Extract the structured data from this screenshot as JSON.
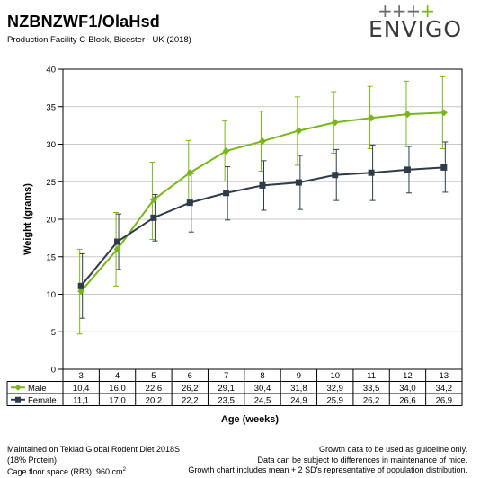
{
  "header": {
    "title": "NZBNZWF1/OlaHsd",
    "subtitle": "Production Facility C-Block, Bicester - UK (2018)",
    "logo_plus": "+++",
    "logo_plus_green": "+",
    "logo_text": "ENVIGO"
  },
  "chart_data": {
    "type": "line",
    "title": "",
    "xlabel": "Age (weeks)",
    "ylabel": "Weight (grams)",
    "ylim": [
      0,
      40
    ],
    "yticks": [
      0,
      5,
      10,
      15,
      20,
      25,
      30,
      35,
      40
    ],
    "grid": true,
    "legend_placement": "table-below",
    "categories": [
      "3",
      "4",
      "5",
      "6",
      "7",
      "8",
      "9",
      "10",
      "11",
      "12",
      "13"
    ],
    "series": [
      {
        "name": "Male",
        "color": "#7ab51d",
        "marker": "diamond",
        "values": [
          10.4,
          16.0,
          22.6,
          26.2,
          29.1,
          30.4,
          31.8,
          32.9,
          33.5,
          34.0,
          34.2
        ],
        "labels": [
          "10,4",
          "16,0",
          "22,6",
          "26,2",
          "29,1",
          "30,4",
          "31,8",
          "32,9",
          "33,5",
          "34,0",
          "34,2"
        ],
        "err_low": [
          4.7,
          11.1,
          17.3,
          21.9,
          25.1,
          26.4,
          27.2,
          28.8,
          29.4,
          29.7,
          29.4
        ],
        "err_high": [
          16.0,
          20.9,
          27.6,
          30.5,
          33.1,
          34.4,
          36.3,
          37.0,
          37.7,
          38.4,
          39.0
        ]
      },
      {
        "name": "Female",
        "color": "#2f3b48",
        "marker": "square",
        "values": [
          11.1,
          17.0,
          20.2,
          22.2,
          23.5,
          24.5,
          24.9,
          25.9,
          26.2,
          26.6,
          26.9
        ],
        "labels": [
          "11,1",
          "17,0",
          "20,2",
          "22,2",
          "23,5",
          "24,5",
          "24,9",
          "25,9",
          "26,2",
          "26,6",
          "26,9"
        ],
        "err_low": [
          6.8,
          13.3,
          17.1,
          18.3,
          19.9,
          21.2,
          21.3,
          22.5,
          22.5,
          23.5,
          23.6
        ],
        "err_high": [
          15.4,
          20.7,
          23.3,
          26.1,
          27.0,
          27.8,
          28.5,
          29.3,
          29.9,
          29.7,
          30.3
        ]
      }
    ]
  },
  "footer": {
    "left": [
      "Maintained on Teklad Global Rodent Diet 2018S",
      "(18% Protein)",
      "Cage floor space (RB3): 960 cm",
      "2"
    ],
    "right": [
      "Growth data to be used as guideline only.",
      "Data can be subject to differences in maintenance of mice.",
      "Growth chart includes mean + 2 SD's representative of population distribution."
    ]
  }
}
